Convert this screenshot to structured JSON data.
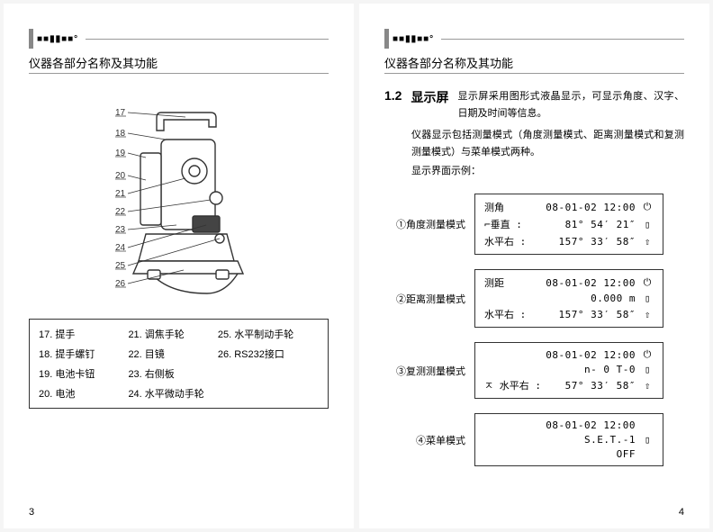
{
  "logo": "■■▮▮■■°",
  "heading": "仪器各部分名称及其功能",
  "leftPage": {
    "pagenum": "3",
    "diagram": {
      "labelNumbers": [
        "17",
        "18",
        "19",
        "20",
        "21",
        "22",
        "23",
        "24",
        "25",
        "26"
      ]
    },
    "parts": [
      {
        "n": "17",
        "t": "提手"
      },
      {
        "n": "21",
        "t": "调焦手轮"
      },
      {
        "n": "25",
        "t": "水平制动手轮"
      },
      {
        "n": "18",
        "t": "提手螺钉"
      },
      {
        "n": "22",
        "t": "目镜"
      },
      {
        "n": "26",
        "t": "RS232接口"
      },
      {
        "n": "19",
        "t": "电池卡钮"
      },
      {
        "n": "23",
        "t": "右侧板"
      },
      {
        "n": "",
        "t": ""
      },
      {
        "n": "20",
        "t": "电池"
      },
      {
        "n": "24",
        "t": "水平微动手轮"
      },
      {
        "n": "",
        "t": ""
      }
    ]
  },
  "rightPage": {
    "pagenum": "4",
    "sectionNum": "1.2",
    "sectionTitle": "显示屏",
    "intro": [
      "显示屏采用图形式液晶显示，可显示角度、汉字、日期及时间等信息。",
      "仪器显示包括测量模式（角度测量模式、距离测量模式和复测测量模式）与菜单模式两种。",
      "显示界面示例："
    ],
    "modes": [
      {
        "label": "①角度测量模式",
        "lines": [
          {
            "l": "测角",
            "v": "08-01-02 12:00",
            "i": "⏻"
          },
          {
            "l": "⌐垂直 :",
            "v": "81° 54′ 21″",
            "i": "▯"
          },
          {
            "l": "水平右 :",
            "v": "157° 33′ 58″",
            "i": "⇧"
          }
        ]
      },
      {
        "label": "②距离测量模式",
        "lines": [
          {
            "l": "测距",
            "v": "08-01-02 12:00",
            "i": "⏻"
          },
          {
            "l": "",
            "v": "0.000 m",
            "i": "▯"
          },
          {
            "l": "水平右 :",
            "v": "157° 33′ 58″",
            "i": "⇧"
          }
        ]
      },
      {
        "label": "③复测测量模式",
        "lines": [
          {
            "l": "",
            "v": "08-01-02 12:00",
            "i": "⏻"
          },
          {
            "l": "",
            "v": "n- 0   T-0",
            "i": "▯"
          },
          {
            "l": "ㅈ 水平右 :",
            "v": "57° 33′ 58″",
            "i": "⇧"
          }
        ]
      },
      {
        "label": "④菜单模式",
        "lines": [
          {
            "l": "",
            "v": "08-01-02 12:00",
            "i": ""
          },
          {
            "l": "",
            "v": "S.E.T.-1",
            "i": "▯"
          },
          {
            "l": "",
            "v": "OFF",
            "i": ""
          }
        ]
      }
    ]
  }
}
